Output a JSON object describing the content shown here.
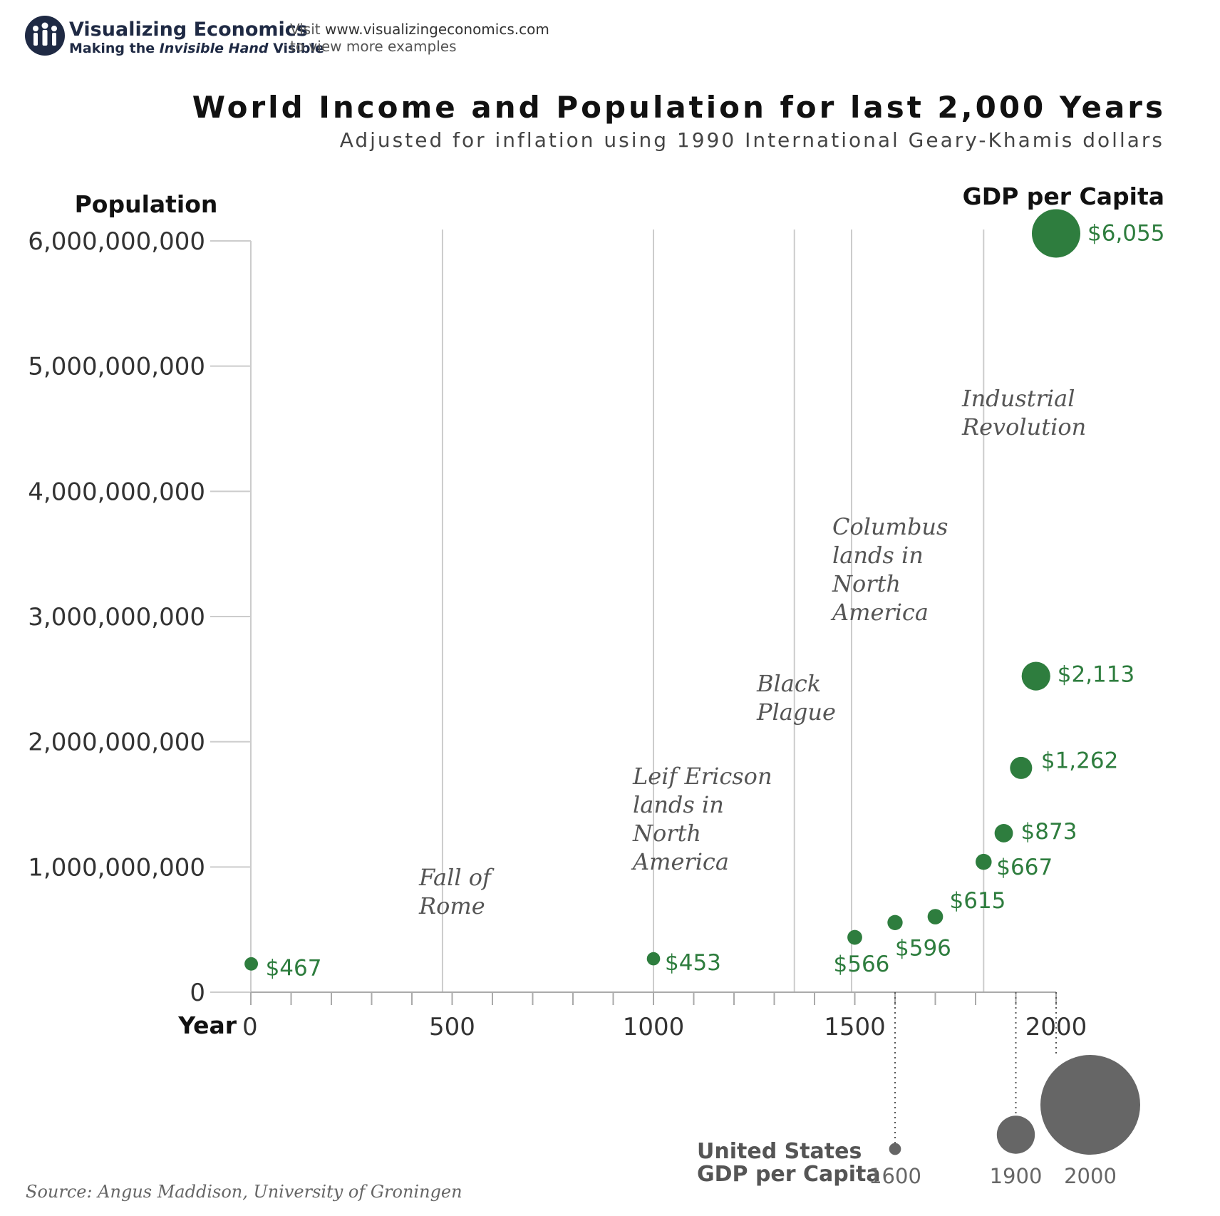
{
  "logo": {
    "name": "Visualizing Economics",
    "tagline_prefix": "Making the ",
    "tagline_italic": "Invisible Hand",
    "tagline_suffix": " Visible"
  },
  "visit": {
    "line1_prefix": "Visit ",
    "line1_url": "www.visualizingeconomics.com",
    "line2": "to view more examples"
  },
  "source": "Source: Angus Maddison, University of Groningen",
  "colors": {
    "world": "#2e7d3e",
    "us": "#666666",
    "grid": "#cccccc"
  },
  "chart_data": {
    "type": "scatter",
    "title": "World Income and Population for last 2,000 Years",
    "subtitle": "Adjusted for inflation using 1990 International Geary-Khamis dollars",
    "ylabel": "Population",
    "xlabel": "Year",
    "size_label": "GDP per Capita",
    "xlim": [
      0,
      2000
    ],
    "ylim": [
      0,
      6000000000
    ],
    "yticks": [
      {
        "value": 0,
        "label": "0"
      },
      {
        "value": 1000000000,
        "label": "1,000,000,000"
      },
      {
        "value": 2000000000,
        "label": "2,000,000,000"
      },
      {
        "value": 3000000000,
        "label": "3,000,000,000"
      },
      {
        "value": 4000000000,
        "label": "4,000,000,000"
      },
      {
        "value": 5000000000,
        "label": "5,000,000,000"
      },
      {
        "value": 6000000000,
        "label": "6,000,000,000"
      }
    ],
    "xticks": [
      {
        "value": 0,
        "label": "0"
      },
      {
        "value": 500,
        "label": "500"
      },
      {
        "value": 1000,
        "label": "1000"
      },
      {
        "value": 1500,
        "label": "1500"
      },
      {
        "value": 2000,
        "label": "2000"
      }
    ],
    "minor_tick_step": 100,
    "points": [
      {
        "year": 1,
        "population": 226000000,
        "gdp_per_capita": 467,
        "label": "$467"
      },
      {
        "year": 1000,
        "population": 267000000,
        "gdp_per_capita": 453,
        "label": "$453"
      },
      {
        "year": 1500,
        "population": 438000000,
        "gdp_per_capita": 566,
        "label": "$566"
      },
      {
        "year": 1600,
        "population": 556000000,
        "gdp_per_capita": 596,
        "label": "$596"
      },
      {
        "year": 1700,
        "population": 603000000,
        "gdp_per_capita": 615,
        "label": "$615"
      },
      {
        "year": 1820,
        "population": 1041000000,
        "gdp_per_capita": 667,
        "label": "$667"
      },
      {
        "year": 1870,
        "population": 1270000000,
        "gdp_per_capita": 873,
        "label": "$873"
      },
      {
        "year": 1913,
        "population": 1791000000,
        "gdp_per_capita": 1262,
        "label": "$1,262"
      },
      {
        "year": 1950,
        "population": 2524000000,
        "gdp_per_capita": 2113,
        "label": "$2,113"
      },
      {
        "year": 2000,
        "population": 6060000000,
        "gdp_per_capita": 6055,
        "label": "$6,055"
      }
    ],
    "events": [
      {
        "year": 476,
        "lines": [
          "Fall of",
          "Rome"
        ]
      },
      {
        "year": 1000,
        "lines": [
          "Leif Ericson",
          "lands in",
          "North",
          "America"
        ]
      },
      {
        "year": 1350,
        "lines": [
          "Black",
          "Plague"
        ]
      },
      {
        "year": 1492,
        "lines": [
          "Columbus",
          "lands in",
          "North",
          "America"
        ]
      },
      {
        "year": 1820,
        "lines": [
          "Industrial",
          "Revolution"
        ]
      }
    ],
    "us_gdp": {
      "title_lines": [
        "United States",
        "GDP per Capita"
      ],
      "points": [
        {
          "year": 1600,
          "label": "1600",
          "gdp_per_capita": 400
        },
        {
          "year": 1900,
          "label": "1900",
          "gdp_per_capita": 4091
        },
        {
          "year": 2000,
          "label": "2000",
          "gdp_per_capita": 28129
        }
      ]
    }
  }
}
